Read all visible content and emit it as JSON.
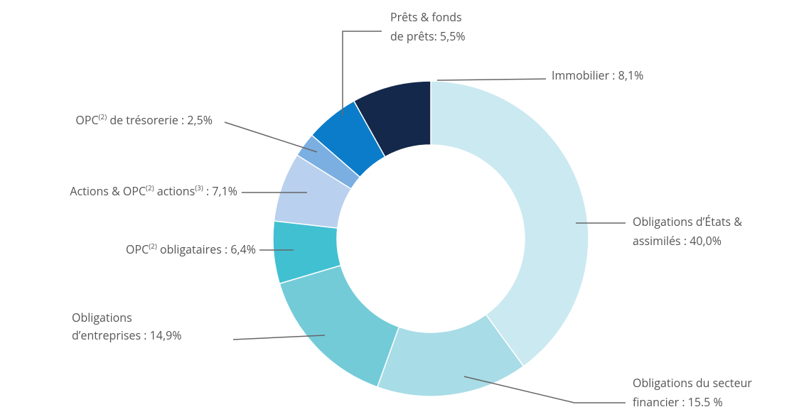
{
  "chart_data": {
    "type": "donut",
    "categories": [
      [
        [
          "Obligations d’États &"
        ],
        [
          "assimilés : 40,0%"
        ]
      ],
      [
        [
          "Obligations du secteur"
        ],
        [
          "financier : 15.5 %"
        ]
      ],
      [
        [
          "Obligations"
        ],
        [
          "d’entreprises : 14,9%"
        ]
      ],
      [
        [
          "OPC",
          {
            "sup": "(2)"
          },
          " obligataires : 6,4%"
        ]
      ],
      [
        [
          "Actions & OPC",
          {
            "sup": "(2)"
          },
          " actions",
          {
            "sup": "(3)"
          },
          " : 7,1%"
        ]
      ],
      [
        [
          "OPC",
          {
            "sup": "(2)"
          },
          " de trésorerie : 2,5%"
        ]
      ],
      [
        [
          "Prêts & fonds"
        ],
        [
          "de prêts: 5,5%"
        ]
      ],
      [
        [
          "Immobilier : 8,1%"
        ]
      ]
    ],
    "values": [
      40.0,
      15.5,
      14.9,
      6.4,
      7.1,
      2.5,
      5.5,
      8.1
    ],
    "colors": [
      "#cbe9f0",
      "#a8dce6",
      "#74cbd8",
      "#41c0d2",
      "#b9d0ee",
      "#7bafe1",
      "#0b7cc9",
      "#13284a"
    ]
  }
}
